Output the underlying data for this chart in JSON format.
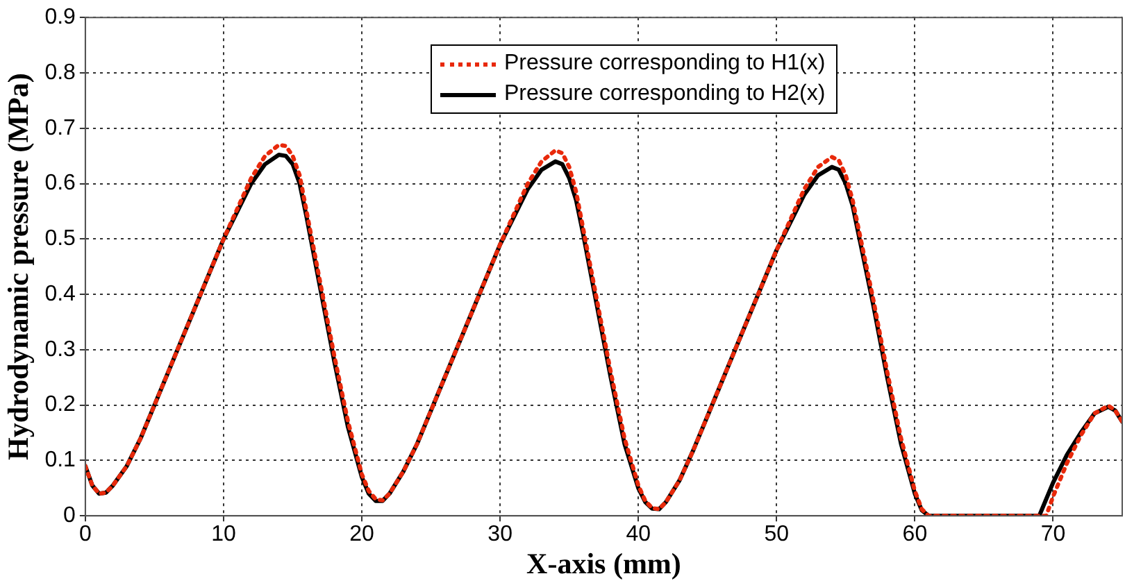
{
  "chart_data": {
    "type": "line",
    "xlabel": "X-axis (mm)",
    "ylabel": "Hydrodynamic pressure (MPa)",
    "xlim": [
      0,
      75
    ],
    "xticks": [
      0,
      10,
      20,
      30,
      40,
      50,
      60,
      70
    ],
    "ylim": [
      0,
      0.9
    ],
    "yticks": [
      0,
      0.1,
      0.2,
      0.3,
      0.4,
      0.5,
      0.6,
      0.7,
      0.8,
      0.9
    ],
    "grid": true,
    "legend": "top",
    "marker": "none",
    "series": [
      {
        "name": "Pressure corresponding to H1(x)",
        "color": "#e8290b",
        "line_style": "dotted",
        "x": [
          0,
          0.5,
          1,
          1.5,
          2,
          3,
          4,
          5,
          6,
          7,
          8,
          9,
          10,
          11,
          12,
          13,
          14,
          14.5,
          15,
          15.5,
          16,
          17,
          18,
          19,
          20,
          20.5,
          21,
          21.5,
          22,
          23,
          24,
          25,
          26,
          27,
          28,
          29,
          30,
          31,
          32,
          33,
          34,
          34.5,
          35,
          35.5,
          36,
          37,
          38,
          39,
          40,
          40.5,
          41,
          41.5,
          42,
          43,
          44,
          45,
          46,
          47,
          48,
          49,
          50,
          51,
          52,
          53,
          54,
          54.5,
          55,
          55.5,
          56,
          57,
          58,
          59,
          60,
          60.5,
          61,
          69,
          69.5,
          70,
          71,
          72,
          73,
          74,
          74.5,
          75
        ],
        "values": [
          0.09,
          0.055,
          0.04,
          0.042,
          0.055,
          0.09,
          0.14,
          0.2,
          0.26,
          0.32,
          0.38,
          0.44,
          0.5,
          0.555,
          0.61,
          0.65,
          0.67,
          0.668,
          0.65,
          0.615,
          0.55,
          0.42,
          0.29,
          0.17,
          0.075,
          0.045,
          0.03,
          0.028,
          0.04,
          0.08,
          0.13,
          0.19,
          0.25,
          0.31,
          0.37,
          0.43,
          0.49,
          0.545,
          0.6,
          0.64,
          0.66,
          0.655,
          0.63,
          0.585,
          0.52,
          0.39,
          0.26,
          0.14,
          0.055,
          0.027,
          0.014,
          0.012,
          0.025,
          0.065,
          0.12,
          0.18,
          0.24,
          0.3,
          0.36,
          0.42,
          0.48,
          0.535,
          0.59,
          0.63,
          0.648,
          0.642,
          0.615,
          0.57,
          0.51,
          0.39,
          0.26,
          0.14,
          0.045,
          0.012,
          0,
          0,
          0,
          0.035,
          0.095,
          0.145,
          0.185,
          0.199,
          0.19,
          0.17
        ]
      },
      {
        "name": "Pressure corresponding to H2(x)",
        "color": "#000000",
        "line_style": "solid",
        "x": [
          0,
          0.5,
          1,
          1.5,
          2,
          3,
          4,
          5,
          6,
          7,
          8,
          9,
          10,
          11,
          12,
          13,
          14,
          14.5,
          15,
          15.5,
          16,
          17,
          18,
          19,
          20,
          20.5,
          21,
          21.5,
          22,
          23,
          24,
          25,
          26,
          27,
          28,
          29,
          30,
          31,
          32,
          33,
          34,
          34.5,
          35,
          35.5,
          36,
          37,
          38,
          39,
          40,
          40.5,
          41,
          41.5,
          42,
          43,
          44,
          45,
          46,
          47,
          48,
          49,
          50,
          51,
          52,
          53,
          54,
          54.5,
          55,
          55.5,
          56,
          57,
          58,
          59,
          60,
          60.5,
          61,
          69,
          69.5,
          70,
          71,
          72,
          73,
          74,
          74.5,
          75
        ],
        "values": [
          0.09,
          0.055,
          0.04,
          0.042,
          0.055,
          0.09,
          0.14,
          0.2,
          0.26,
          0.32,
          0.38,
          0.44,
          0.5,
          0.55,
          0.6,
          0.635,
          0.652,
          0.65,
          0.635,
          0.6,
          0.54,
          0.41,
          0.28,
          0.16,
          0.07,
          0.04,
          0.027,
          0.027,
          0.04,
          0.08,
          0.13,
          0.19,
          0.25,
          0.31,
          0.37,
          0.43,
          0.49,
          0.54,
          0.59,
          0.625,
          0.64,
          0.635,
          0.61,
          0.57,
          0.51,
          0.38,
          0.25,
          0.13,
          0.05,
          0.025,
          0.013,
          0.012,
          0.025,
          0.065,
          0.12,
          0.18,
          0.24,
          0.3,
          0.36,
          0.42,
          0.48,
          0.53,
          0.58,
          0.615,
          0.63,
          0.625,
          0.6,
          0.56,
          0.5,
          0.38,
          0.25,
          0.13,
          0.04,
          0.01,
          0,
          0,
          0.03,
          0.06,
          0.11,
          0.15,
          0.185,
          0.197,
          0.19,
          0.17
        ]
      }
    ]
  }
}
